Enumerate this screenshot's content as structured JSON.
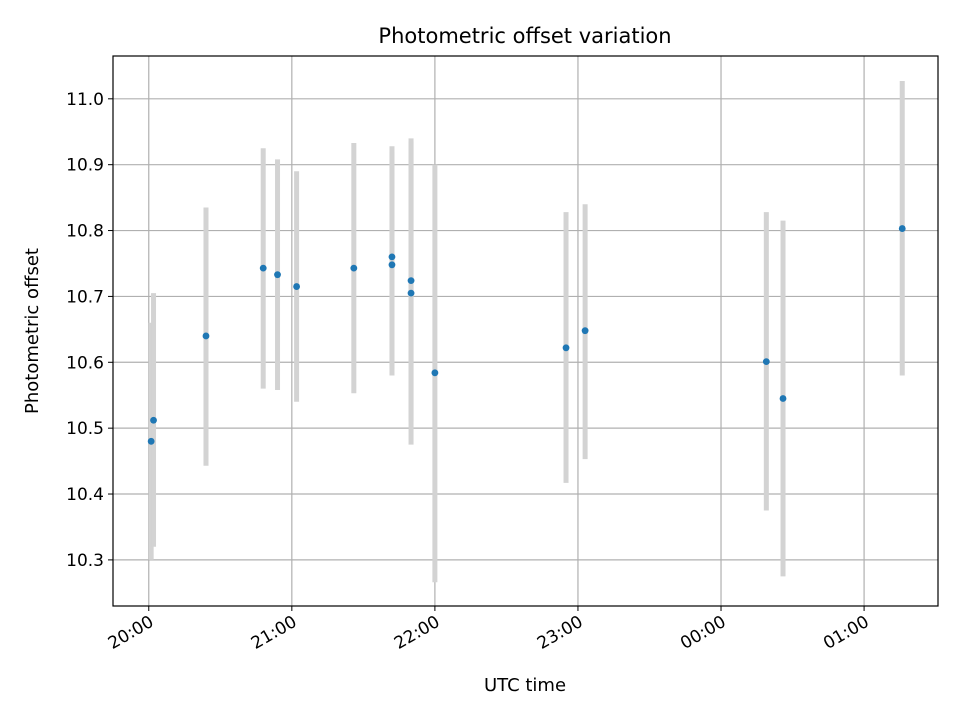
{
  "chart_data": {
    "type": "scatter",
    "title": "Photometric offset variation",
    "xlabel": "UTC time",
    "ylabel": "Photometric offset",
    "grid": true,
    "x_unit": "UTC time (HH:MM)",
    "xlim": [
      "19:45",
      "01:31"
    ],
    "ylim": [
      10.23,
      11.065
    ],
    "x_ticks": [
      "20:00",
      "21:00",
      "22:00",
      "23:00",
      "00:00",
      "01:00"
    ],
    "y_ticks": [
      "10.3",
      "10.4",
      "10.5",
      "10.6",
      "10.7",
      "10.8",
      "10.9",
      "11.0"
    ],
    "colors": {
      "point": "#1f77b4",
      "errorbar": "#d3d3d3",
      "grid": "#b0b0b0"
    },
    "series": [
      {
        "points": [
          {
            "x": "20:01",
            "y": 10.48,
            "ymin": 10.3,
            "ymax": 10.66
          },
          {
            "x": "20:02",
            "y": 10.512,
            "ymin": 10.32,
            "ymax": 10.705
          },
          {
            "x": "20:24",
            "y": 10.64,
            "ymin": 10.443,
            "ymax": 10.835
          },
          {
            "x": "20:48",
            "y": 10.743,
            "ymin": 10.56,
            "ymax": 10.925
          },
          {
            "x": "20:54",
            "y": 10.733,
            "ymin": 10.558,
            "ymax": 10.908
          },
          {
            "x": "21:02",
            "y": 10.715,
            "ymin": 10.54,
            "ymax": 10.89
          },
          {
            "x": "21:26",
            "y": 10.743,
            "ymin": 10.553,
            "ymax": 10.933
          },
          {
            "x": "21:42",
            "y": 10.748,
            "ymin": 10.58,
            "ymax": 10.92
          },
          {
            "x": "21:42",
            "y": 10.76,
            "ymin": 10.59,
            "ymax": 10.928
          },
          {
            "x": "21:50",
            "y": 10.724,
            "ymin": 10.51,
            "ymax": 10.94
          },
          {
            "x": "21:50",
            "y": 10.705,
            "ymin": 10.475,
            "ymax": 10.935
          },
          {
            "x": "22:00",
            "y": 10.584,
            "ymin": 10.266,
            "ymax": 10.9
          },
          {
            "x": "22:55",
            "y": 10.622,
            "ymin": 10.417,
            "ymax": 10.828
          },
          {
            "x": "23:03",
            "y": 10.648,
            "ymin": 10.453,
            "ymax": 10.84
          },
          {
            "x": "00:19",
            "y": 10.601,
            "ymin": 10.375,
            "ymax": 10.828
          },
          {
            "x": "00:26",
            "y": 10.545,
            "ymin": 10.275,
            "ymax": 10.815
          },
          {
            "x": "01:16",
            "y": 10.803,
            "ymin": 10.58,
            "ymax": 11.027
          }
        ]
      }
    ]
  }
}
